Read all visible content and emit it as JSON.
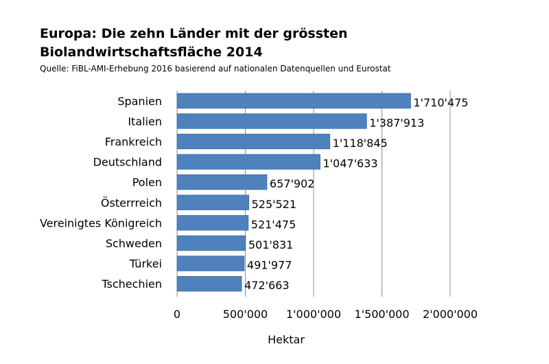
{
  "chart_data": {
    "type": "bar",
    "orientation": "horizontal",
    "title_lines": [
      "Europa: Die zehn Länder mit der grössten",
      "Biolandwirtschaftsfläche 2014"
    ],
    "subtitle": "Quelle: FiBL-AMI-Erhebung 2016 basierend auf nationalen Datenquellen und Eurostat",
    "categories": [
      "Spanien",
      "Italien",
      "Frankreich",
      "Deutschland",
      "Polen",
      "Österrreich",
      "Vereinigtes Königreich",
      "Schweden",
      "Türkei",
      "Tschechien"
    ],
    "values": [
      1710475,
      1387913,
      1118845,
      1047633,
      657902,
      525521,
      521475,
      501831,
      491977,
      472663
    ],
    "value_labels": [
      "1'710'475",
      "1'387'913",
      "1'118'845",
      "1'047'633",
      "657'902",
      "525'521",
      "521'475",
      "501'831",
      "491'977",
      "472'663"
    ],
    "xlim": [
      0,
      2000000
    ],
    "xticks": [
      0,
      500000,
      1000000,
      1500000,
      2000000
    ],
    "xtick_labels": [
      "0",
      "500'000",
      "1'000'000",
      "1'500'000",
      "2'000'000"
    ],
    "xlabel": "Hektar",
    "ylabel": "",
    "grid": "vertical",
    "legend": "none",
    "bar_color": "#4f81bd"
  }
}
